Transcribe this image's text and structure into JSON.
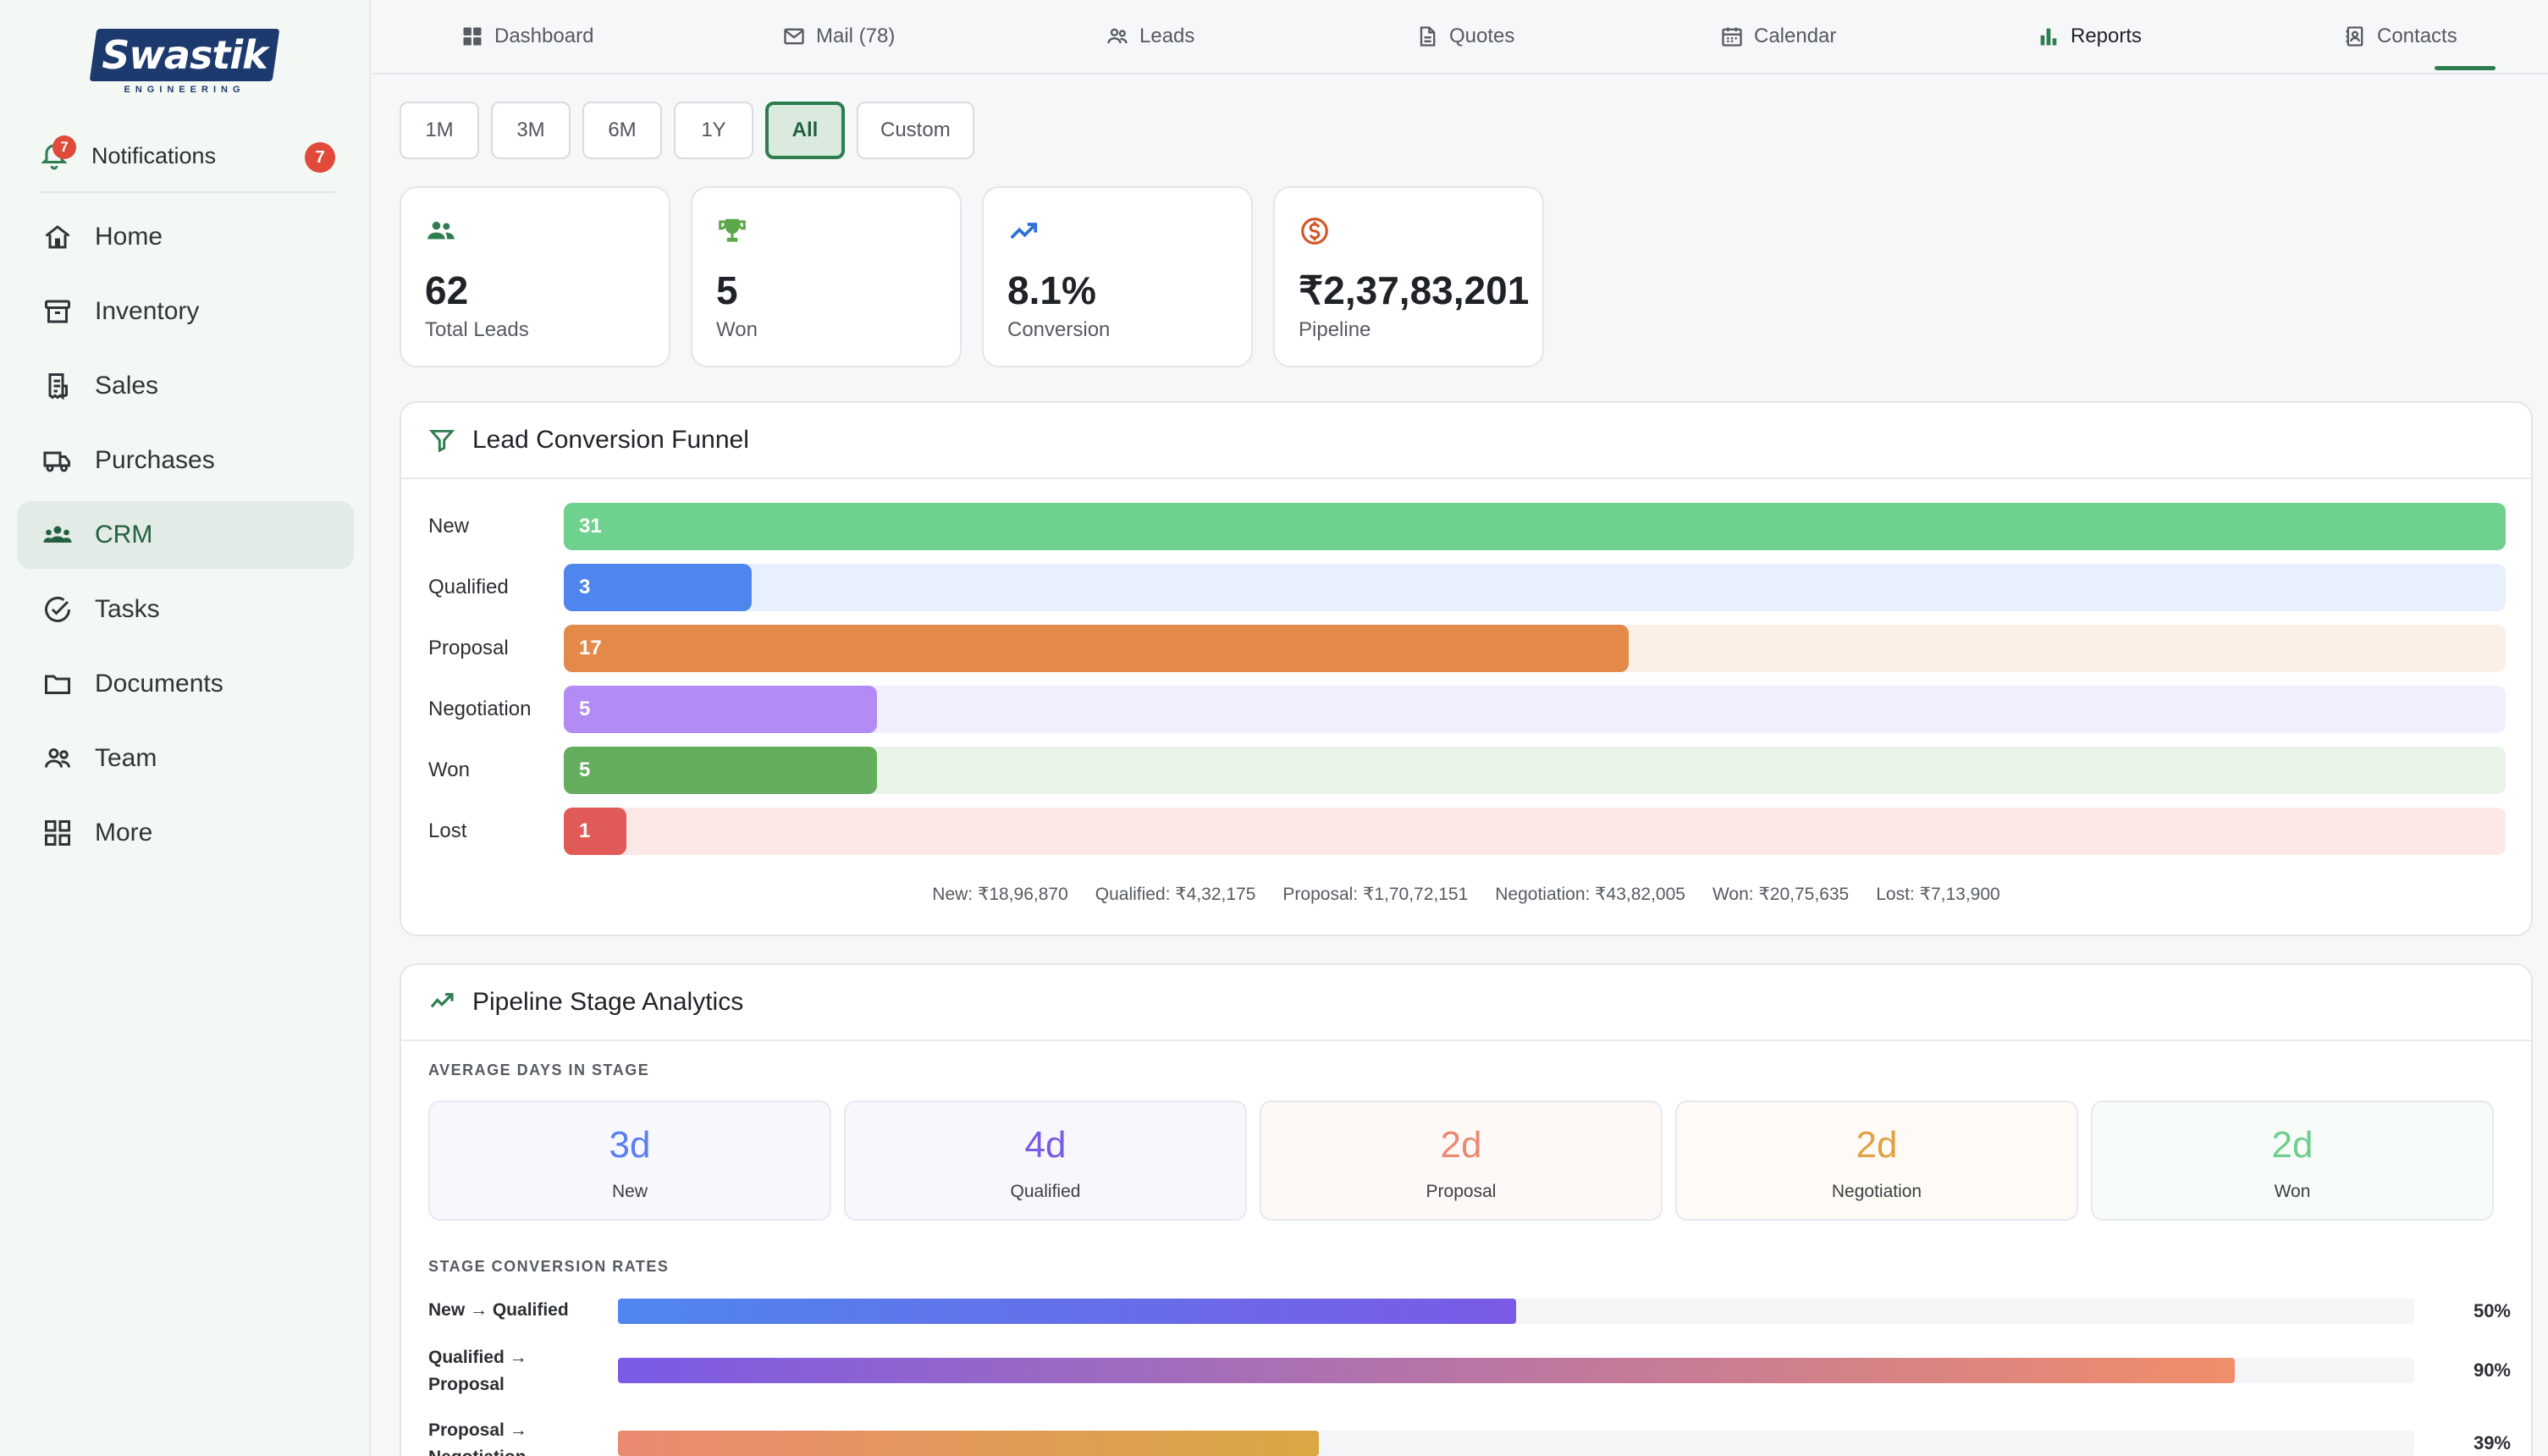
{
  "brand": {
    "name": "Swastik",
    "subtitle": "ENGINEERING"
  },
  "notifications": {
    "label": "Notifications",
    "count": "7"
  },
  "sidebar": {
    "items": [
      {
        "label": "Home",
        "icon": "home-icon",
        "active": false
      },
      {
        "label": "Inventory",
        "icon": "archive-icon",
        "active": false
      },
      {
        "label": "Sales",
        "icon": "receipt-icon",
        "active": false
      },
      {
        "label": "Purchases",
        "icon": "truck-icon",
        "active": false
      },
      {
        "label": "CRM",
        "icon": "users-icon",
        "active": true
      },
      {
        "label": "Tasks",
        "icon": "check-circle-icon",
        "active": false
      },
      {
        "label": "Documents",
        "icon": "folder-icon",
        "active": false
      },
      {
        "label": "Team",
        "icon": "team-icon",
        "active": false
      },
      {
        "label": "More",
        "icon": "grid-icon",
        "active": false
      }
    ]
  },
  "tabs": [
    {
      "label": "Dashboard",
      "icon": "dashboard-icon"
    },
    {
      "label": "Mail (78)",
      "icon": "mail-icon"
    },
    {
      "label": "Leads",
      "icon": "users-icon"
    },
    {
      "label": "Quotes",
      "icon": "document-icon"
    },
    {
      "label": "Calendar",
      "icon": "calendar-icon"
    },
    {
      "label": "Reports",
      "icon": "bar-chart-icon",
      "active": true
    },
    {
      "label": "Contacts",
      "icon": "contact-card-icon"
    }
  ],
  "periods": [
    {
      "label": "1M"
    },
    {
      "label": "3M"
    },
    {
      "label": "6M"
    },
    {
      "label": "1Y"
    },
    {
      "label": "All",
      "active": true
    },
    {
      "label": "Custom"
    }
  ],
  "kpis": [
    {
      "value": "62",
      "label": "Total Leads",
      "icon": "users-icon",
      "color": "#2e7d4f"
    },
    {
      "value": "5",
      "label": "Won",
      "icon": "trophy-icon",
      "color": "#5aa84a"
    },
    {
      "value": "8.1%",
      "label": "Conversion",
      "icon": "trending-up-icon",
      "color": "#2f6fd6"
    },
    {
      "value": "₹2,37,83,201",
      "label": "Pipeline",
      "icon": "dollar-circle-icon",
      "color": "#d2562a"
    }
  ],
  "funnel": {
    "title": "Lead Conversion Funnel",
    "stages": [
      {
        "label": "New",
        "count": 31,
        "color": "#6fd18e",
        "track": "#e9f6ee"
      },
      {
        "label": "Qualified",
        "count": 3,
        "color": "#4f86ee",
        "track": "#e8effd"
      },
      {
        "label": "Proposal",
        "count": 17,
        "color": "#e38a4a",
        "track": "#fcf0e6"
      },
      {
        "label": "Negotiation",
        "count": 5,
        "color": "#b28cf4",
        "track": "#f3eefd"
      },
      {
        "label": "Won",
        "count": 5,
        "color": "#63ad5c",
        "track": "#e9f3e8"
      },
      {
        "label": "Lost",
        "count": 1,
        "color": "#e05b58",
        "track": "#fbe8e7"
      }
    ],
    "values": [
      "New: ₹18,96,870",
      "Qualified: ₹4,32,175",
      "Proposal: ₹1,70,72,151",
      "Negotiation: ₹43,82,005",
      "Won: ₹20,75,635",
      "Lost: ₹7,13,900"
    ]
  },
  "pipeline": {
    "title": "Pipeline Stage Analytics",
    "avg_days_label": "AVERAGE DAYS IN STAGE",
    "stages": [
      {
        "value": "3d",
        "name": "New",
        "color": "#5b7ef0",
        "bg": "#f7f8fe"
      },
      {
        "value": "4d",
        "name": "Qualified",
        "color": "#7a5ae6",
        "bg": "#f8f7fe"
      },
      {
        "value": "2d",
        "name": "Proposal",
        "color": "#ea8a72",
        "bg": "#fef9f7"
      },
      {
        "value": "2d",
        "name": "Negotiation",
        "color": "#e0a044",
        "bg": "#fefbf6"
      },
      {
        "value": "2d",
        "name": "Won",
        "color": "#6fce8c",
        "bg": "#f7fcf8"
      }
    ],
    "rates_label": "STAGE CONVERSION RATES",
    "rates": [
      {
        "label": "New → Qualified",
        "pct": 50,
        "pct_label": "50%",
        "from": "#4f86ee",
        "to": "#7a5ae6"
      },
      {
        "label": "Qualified → Proposal",
        "pct": 90,
        "pct_label": "90%",
        "from": "#7a5ae6",
        "to": "#f08e6a"
      },
      {
        "label": "Proposal → Negotiation",
        "pct": 39,
        "pct_label": "39%",
        "from": "#ea8a72",
        "to": "#d9a842"
      }
    ]
  }
}
